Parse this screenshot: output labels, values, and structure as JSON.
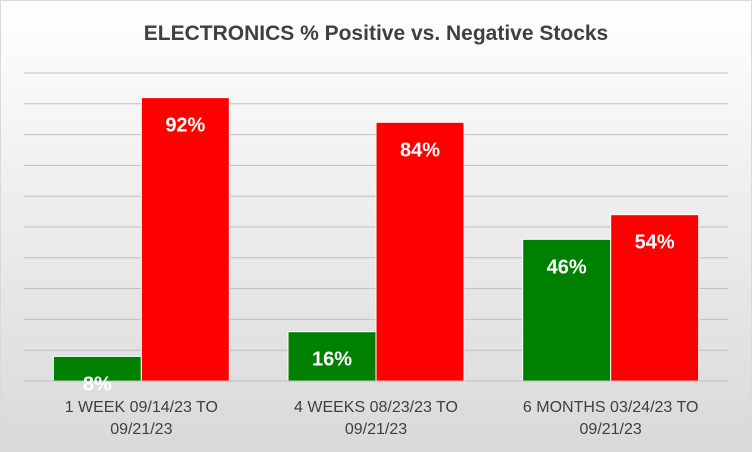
{
  "chart_data": {
    "type": "bar",
    "title": "ELECTRONICS % Positive vs. Negative Stocks",
    "categories": [
      [
        "1 WEEK 09/14/23 TO",
        "09/21/23"
      ],
      [
        "4 WEEKS 08/23/23 TO",
        "09/21/23"
      ],
      [
        "6 MONTHS 03/24/23 TO",
        "09/21/23"
      ]
    ],
    "series": [
      {
        "values": [
          8,
          16,
          46
        ],
        "labels": [
          "8%",
          "16%",
          "46%"
        ],
        "color": "#008000"
      },
      {
        "values": [
          92,
          84,
          54
        ],
        "labels": [
          "92%",
          "84%",
          "54%"
        ],
        "color": "#ff0000"
      }
    ],
    "ylim": [
      0,
      100
    ],
    "grid": true,
    "legend": "none",
    "background_gradient": [
      "#ffffff",
      "#d9d9d9"
    ],
    "gridline_color": "#bfbfbf",
    "xlabel": "",
    "ylabel": ""
  }
}
